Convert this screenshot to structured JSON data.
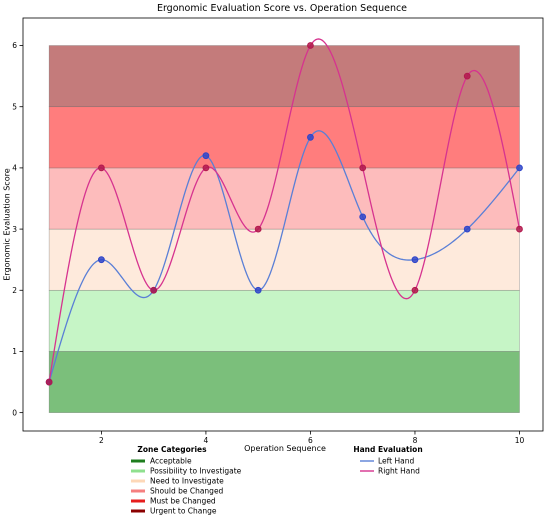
{
  "chart_data": {
    "type": "line",
    "title": "Ergonomic Evaluation Score vs. Operation Sequence",
    "xlabel": "Operation Sequence",
    "ylabel": "Ergonomic Evaluation Score",
    "xlim": [
      0.5,
      10.45
    ],
    "ylim": [
      -0.3,
      6.45
    ],
    "xticks": [
      2,
      4,
      6,
      8,
      10
    ],
    "yticks": [
      0,
      1,
      2,
      3,
      4,
      5,
      6
    ],
    "zones": [
      {
        "name": "Acceptable",
        "from": 0,
        "to": 1,
        "fill": "#7bbf7b",
        "legend_color": "#1e7d1e"
      },
      {
        "name": "Possibility to Investigate",
        "from": 1,
        "to": 2,
        "fill": "#c6f5c6",
        "legend_color": "#8fe08f"
      },
      {
        "name": "Need to Investigate",
        "from": 2,
        "to": 3,
        "fill": "#feeadc",
        "legend_color": "#fdd8b8"
      },
      {
        "name": "Should be Changed",
        "from": 3,
        "to": 4,
        "fill": "#fdbcbc",
        "legend_color": "#f58080"
      },
      {
        "name": "Must be Changed",
        "from": 4,
        "to": 5,
        "fill": "#ff7d7d",
        "legend_color": "#e61e1e"
      },
      {
        "name": "Urgent to Change",
        "from": 5,
        "to": 6,
        "fill": "#c47b7b",
        "legend_color": "#8b0000"
      }
    ],
    "zone_legend_title": "Zone Categories",
    "hand_legend_title": "Hand Evaluation",
    "x": [
      1,
      2,
      3,
      4,
      5,
      6,
      7,
      8,
      9,
      10
    ],
    "series": [
      {
        "name": "Left Hand",
        "line_color": "#5a7fd6",
        "marker_color": "#2f45c9",
        "values": [
          0.5,
          2.5,
          2.0,
          4.2,
          2.0,
          4.5,
          3.2,
          2.5,
          3.0,
          4.0
        ]
      },
      {
        "name": "Right Hand",
        "line_color": "#d6338f",
        "marker_color": "#b3194d",
        "values": [
          0.5,
          4.0,
          2.0,
          4.0,
          3.0,
          6.0,
          4.0,
          2.0,
          5.5,
          3.0
        ]
      }
    ]
  }
}
